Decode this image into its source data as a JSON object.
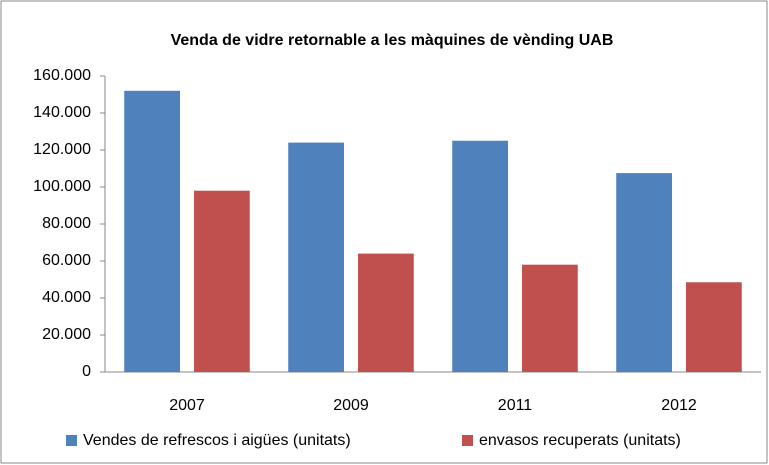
{
  "chart_data": {
    "type": "bar",
    "title": "Venda de vidre retornable a les màquines de vènding UAB",
    "categories": [
      "2007",
      "2009",
      "2011",
      "2012"
    ],
    "series": [
      {
        "name": "Vendes de refrescos i aigües (unitats)",
        "color": "#4f81bd",
        "values": [
          152000,
          124000,
          125000,
          107500
        ]
      },
      {
        "name": "envasos recuperats (unitats)",
        "color": "#c0504d",
        "values": [
          98000,
          64000,
          58000,
          48500
        ]
      }
    ],
    "ylim": [
      0,
      160000
    ],
    "yticks": [
      0,
      {
        "value": 20000,
        "label": "20.000"
      },
      {
        "value": 40000,
        "label": "40.000"
      },
      {
        "value": 60000,
        "label": "60.000"
      },
      {
        "value": 80000,
        "label": "80.000"
      },
      {
        "value": 100000,
        "label": "100.000"
      },
      {
        "value": 120000,
        "label": "120.000"
      },
      {
        "value": 140000,
        "label": "140.000"
      },
      {
        "value": 160000,
        "label": "160.000"
      }
    ],
    "grid": false,
    "legend": "bottom"
  }
}
